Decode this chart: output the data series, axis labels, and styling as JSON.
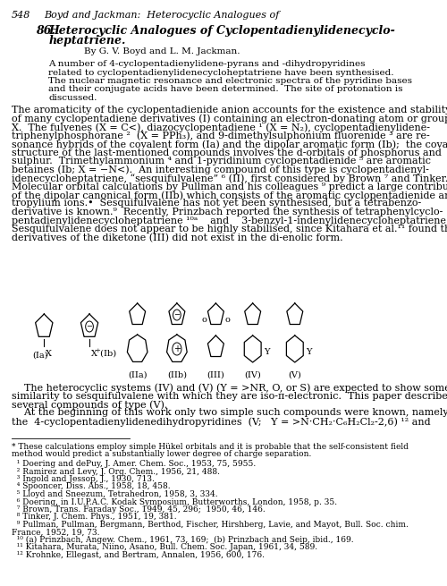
{
  "title_line": "548        Boyd and Jackman:  Heterocyclic Analogues of",
  "section_num": "86.",
  "section_title1": "Heterocyclic Analogues of Cyclopentadienylidenecyclo-",
  "section_title2": "heptatriene.",
  "authors": "By G. V. Boyd and L. M. Jackman.",
  "abstract": "A number of 4-cyclopentadienylidene-pyrans and -dihydropyridines\nrelated to cyclopentadienylidenecycloheptatriene have been synthesised.\nThe nuclear magnetic resonance and electronic spectra of the pyridine bases\nand their conjugate acids have been determined.  The site of protonation is\ndiscussed.",
  "para1": "The aromaticity of the cyclopentadienide anion accounts for the existence and stability\nof many cyclopentadiene derivatives (I) containing an electron-donating atom or group\nX.  The fulvenes (X = C<), diazocyclopentadiene ¹ (X = N₂), cyclopentadienylidene-\ntriphenylphosphorane ²  (X = PPh₃), and 9-dimethylsulphonium fluorenide ³ are re-\nsonance hybrids of the covalent form (Ia) and the dipolar aromatic form (Ib);  the covalent\nstructure of the last-mentioned compounds involves the d-orbitals of phosphorus and\nsulphur.  Trimethylammonium ⁴ and 1-pyridinium cyclopentadienide ⁵ are aromatic\nbetaines (Ib; X = -N<).  An interesting compound of this type is cyclopentadienyl-\nidenecycloheptatriene, “sesquifulvalene” ⁶ (II), first considered by Brown ⁷ and Tinker.⁸\nMolecular orbital calculations by Pullman and his colleagues ⁹ predict a large contribution\nof the dipolar canonical form (IIb) which consists of the aromatic cyclopentadienide and\ntropylium ions.•  Sesquifulvalene has not yet been synthesised, but a tetrabenzo-\nderivative is known.⁹  Recently, Prinzbach reported the synthesis of tetraphenylcyclo-",
  "para2_line1": "pentadienylidenecycloheptatriene ¹⁰ᵃ    and    3-benzyl-1-indenylidenecycloheptatriene.¹⁰ᵇ",
  "para2_line2": "Sesquifulvalene does not appear to be highly stabilised, since Kitahara et al.¹¹ found that",
  "para2_line3": "derivatives of the diketone (III) did not exist in the di-enolic form.",
  "para3": "The heterocyclic systems (IV) and (V) (Y = >NR, O, or S) are expected to show some\nsimilarity to sesquifulvalene with which they are iso-π-electronic.  This paper describes\nseveral compounds of type (V).",
  "para4": "At the beginning of this work only two simple such compounds were known, namely\nthe  4-cyclopentadienylidenedihydropyridines  (V;   Y = >N·CH₂·C₆H₂Cl₂-2,6) ¹² and",
  "footnote": "* These calculations employ simple Hükel orbitals and it is probable that the self-consistent field\nmethod would predict a substantially lower degree of charge separation.",
  "refs": "  ¹ Doering and dePuy, J. Amer. Chem. Soc., 1953, 75, 5955.\n  ² Ramirez and Levy, J. Org. Chem., 1956, 21, 488.\n  ³ Ingold and Jessop, J., 1930, 713.\n  ⁴ Spooncer, Diss. Abs., 1958, 18, 458.\n  ⁵ Lloyd and Sneezum, Tetrahedron, 1958, 3, 334.\n  ⁶ Doering, in I.U.P.A.C. Kodak Symposium, Butterworths, London, 1958, p. 35.\n  ⁷ Brown, Trans. Faraday Soc., 1949, 45, 296;  1950, 46, 146.\n  ⁸ Tinker, J. Chem. Phys., 1951, 19, 381.\n  ⁹ Pullman, Pullman, Bergmann, Berthod, Fischer, Hirshberg, Lavie, and Mayot, Bull. Soc. chim.\nFrance, 1952, 19, 73.\n  ¹⁰ (a) Prinzbach, Angew. Chem., 1961, 73, 169;  (b) Prinzbach and Seip, ibid., 169.\n  ¹¹ Kitahara, Murata, Niino, Asano, Bull. Chem. Soc. Japan, 1961, 34, 589.\n  ¹² Krohnke, Ellegast, and Bertram, Annalen, 1956, 600, 176.",
  "bg_color": "#ffffff",
  "text_color": "#000000"
}
